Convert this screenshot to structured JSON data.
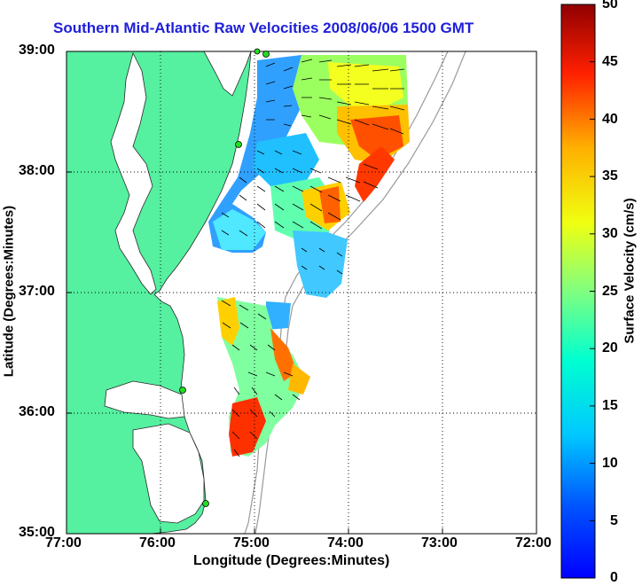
{
  "title": "Southern Mid-Atlantic Raw Velocities 2008/06/06 1500 GMT",
  "x_axis": {
    "label": "Longitude (Degrees:Minutes)",
    "ticks": [
      "77:00",
      "76:00",
      "75:00",
      "74:00",
      "73:00",
      "72:00"
    ]
  },
  "y_axis": {
    "label": "Latitude (Degrees:Minutes)",
    "ticks": [
      "39:00",
      "38:00",
      "37:00",
      "36:00",
      "35:00"
    ]
  },
  "colorbar": {
    "label": "Surface Velocity (cm/s)",
    "ticks": [
      "50",
      "45",
      "40",
      "35",
      "30",
      "25",
      "20",
      "15",
      "10",
      "5",
      "0"
    ],
    "min": 0,
    "max": 50,
    "colormap": "jet"
  },
  "colors": {
    "land": "#55f0a0",
    "title": "#1f1fd8",
    "isobath": "#9a9a9a",
    "site_marker": "#22dd22"
  },
  "map_extent": {
    "lon": [
      -77,
      -72
    ],
    "lat": [
      35,
      39
    ]
  },
  "grid": "dotted",
  "radar_sites_count": 5
}
